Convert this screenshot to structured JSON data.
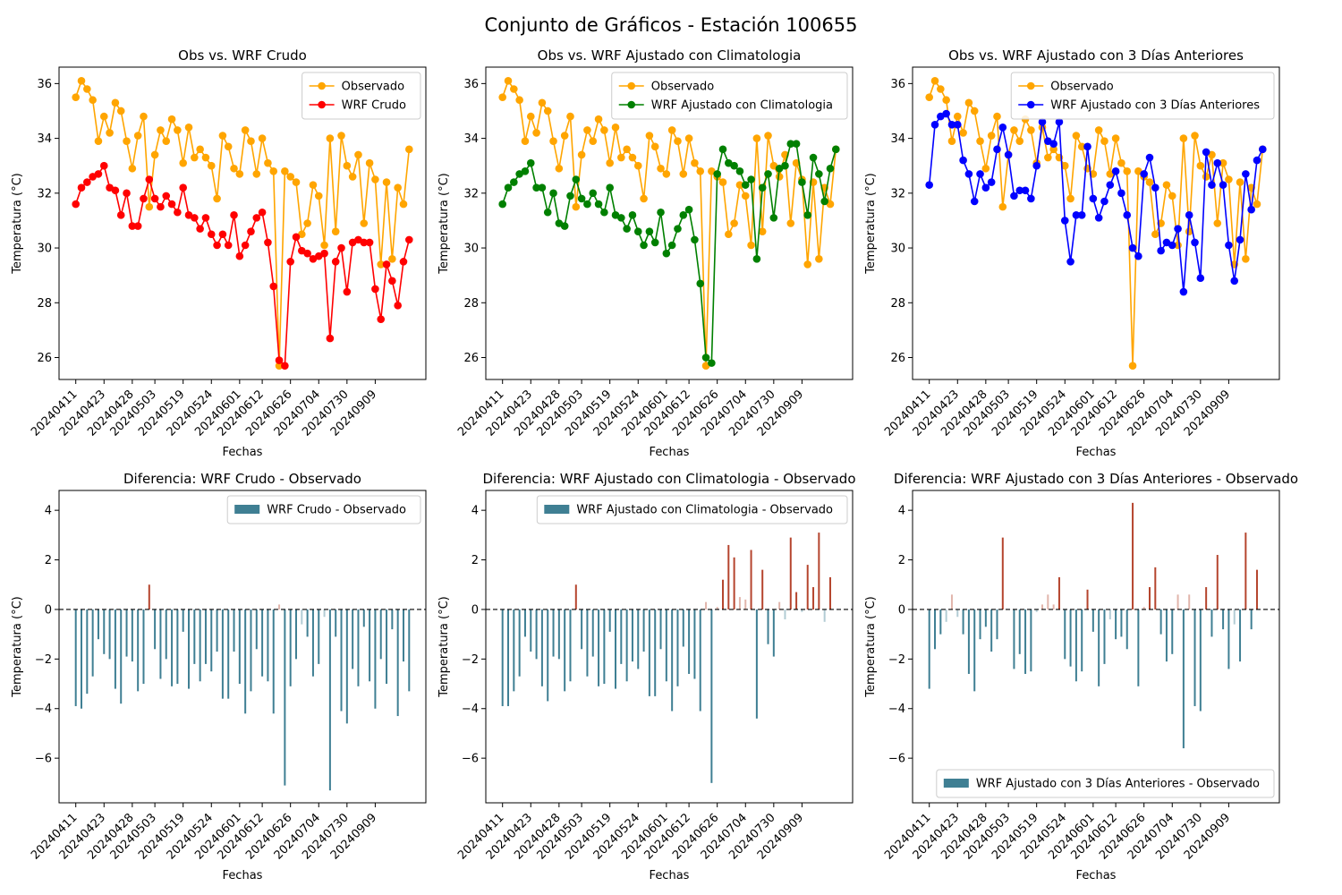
{
  "figure": {
    "title": "Conjunto de Gráficos - Estación 100655"
  },
  "colors": {
    "observed": "#ffa500",
    "raw": "#ff0000",
    "clim": "#008000",
    "prev3": "#0000ff",
    "bar_neg": "#3f7f93",
    "bar_pos": "#b5452e"
  },
  "chart_data": [
    {
      "type": "line",
      "title": "Obs vs. WRF Crudo",
      "xlabel": "Fechas",
      "ylabel": "Temperatura (°C)",
      "ylim": [
        25.2,
        36.6
      ],
      "yticks": [
        26,
        28,
        30,
        32,
        34,
        36
      ],
      "xticklabels": [
        "20240411",
        "20240423",
        "20240428",
        "20240503",
        "20240519",
        "20240524",
        "20240601",
        "20240612",
        "20240626",
        "20240704",
        "20240730",
        "20240909"
      ],
      "legend_position": "top-right",
      "series": [
        {
          "name": "Observado",
          "color": "#ffa500",
          "values": [
            35.5,
            36.1,
            35.8,
            35.4,
            33.9,
            34.8,
            34.2,
            35.3,
            35.0,
            33.9,
            32.9,
            34.1,
            34.8,
            31.5,
            33.4,
            34.3,
            33.9,
            34.7,
            34.3,
            33.1,
            34.4,
            33.3,
            33.6,
            33.3,
            33.0,
            31.8,
            34.1,
            33.7,
            32.9,
            32.7,
            34.3,
            33.9,
            32.7,
            34.0,
            33.1,
            32.8,
            25.7,
            32.8,
            32.6,
            32.4,
            30.5,
            30.9,
            32.3,
            31.9,
            30.1,
            34.0,
            30.6,
            34.1,
            33.0,
            32.6,
            33.4,
            30.9,
            33.1,
            32.5,
            29.4,
            32.4,
            29.6,
            32.2,
            31.6,
            33.6
          ]
        },
        {
          "name": "WRF Crudo",
          "color": "#ff0000",
          "values": [
            31.6,
            32.2,
            32.4,
            32.6,
            32.7,
            33.0,
            32.2,
            32.1,
            31.2,
            32.0,
            30.8,
            30.8,
            31.8,
            32.5,
            31.8,
            31.5,
            31.9,
            31.6,
            31.3,
            32.2,
            31.2,
            31.1,
            30.7,
            31.1,
            30.5,
            30.1,
            30.5,
            30.1,
            31.2,
            29.7,
            30.1,
            30.6,
            31.1,
            31.3,
            30.2,
            28.6,
            25.9,
            25.7,
            29.5,
            30.4,
            29.9,
            29.8,
            29.6,
            29.7,
            29.8,
            26.7,
            29.5,
            30.0,
            28.4,
            30.2,
            30.3,
            30.2,
            30.2,
            28.5,
            27.4,
            29.4,
            28.8,
            27.9,
            29.5,
            30.3
          ]
        }
      ]
    },
    {
      "type": "line",
      "title": "Obs vs. WRF Ajustado con Climatologia",
      "xlabel": "Fechas",
      "ylabel": "Temperatura (°C)",
      "ylim": [
        25.2,
        36.6
      ],
      "yticks": [
        26,
        28,
        30,
        32,
        34,
        36
      ],
      "xticklabels": [
        "20240411",
        "20240423",
        "20240428",
        "20240503",
        "20240519",
        "20240524",
        "20240601",
        "20240612",
        "20240626",
        "20240704",
        "20240730",
        "20240909"
      ],
      "legend_position": "top-right",
      "series": [
        {
          "name": "Observado",
          "color": "#ffa500",
          "values": [
            35.5,
            36.1,
            35.8,
            35.4,
            33.9,
            34.8,
            34.2,
            35.3,
            35.0,
            33.9,
            32.9,
            34.1,
            34.8,
            31.5,
            33.4,
            34.3,
            33.9,
            34.7,
            34.3,
            33.1,
            34.4,
            33.3,
            33.6,
            33.3,
            33.0,
            31.8,
            34.1,
            33.7,
            32.9,
            32.7,
            34.3,
            33.9,
            32.7,
            34.0,
            33.1,
            32.8,
            25.7,
            32.8,
            32.6,
            32.4,
            30.5,
            30.9,
            32.3,
            31.9,
            30.1,
            34.0,
            30.6,
            34.1,
            33.0,
            32.6,
            33.4,
            30.9,
            33.1,
            32.5,
            29.4,
            32.4,
            29.6,
            32.2,
            31.6,
            33.6
          ]
        },
        {
          "name": "WRF Ajustado con Climatologia",
          "color": "#008000",
          "values": [
            31.6,
            32.2,
            32.4,
            32.7,
            32.8,
            33.1,
            32.2,
            32.2,
            31.3,
            32.0,
            30.9,
            30.8,
            31.9,
            32.5,
            31.8,
            31.6,
            32.0,
            31.6,
            31.3,
            32.2,
            31.2,
            31.1,
            30.7,
            31.2,
            30.6,
            30.1,
            30.6,
            30.2,
            31.3,
            29.8,
            30.1,
            30.7,
            31.2,
            31.4,
            30.3,
            28.7,
            26.0,
            25.8,
            32.7,
            33.6,
            33.1,
            33.0,
            32.8,
            32.3,
            32.5,
            29.6,
            32.2,
            32.7,
            31.1,
            32.9,
            33.0,
            33.8,
            33.8,
            32.4,
            31.2,
            33.3,
            32.7,
            31.7,
            32.9,
            33.6
          ]
        }
      ]
    },
    {
      "type": "line",
      "title": "Obs vs. WRF Ajustado con 3 Días Anteriores",
      "xlabel": "Fechas",
      "ylabel": "Temperatura (°C)",
      "ylim": [
        25.2,
        36.6
      ],
      "yticks": [
        26,
        28,
        30,
        32,
        34,
        36
      ],
      "xticklabels": [
        "20240411",
        "20240423",
        "20240428",
        "20240503",
        "20240519",
        "20240524",
        "20240601",
        "20240612",
        "20240626",
        "20240704",
        "20240730",
        "20240909"
      ],
      "legend_position": "top-right",
      "series": [
        {
          "name": "Observado",
          "color": "#ffa500",
          "values": [
            35.5,
            36.1,
            35.8,
            35.4,
            33.9,
            34.8,
            34.2,
            35.3,
            35.0,
            33.9,
            32.9,
            34.1,
            34.8,
            31.5,
            33.4,
            34.3,
            33.9,
            34.7,
            34.3,
            33.1,
            34.4,
            33.3,
            33.6,
            33.3,
            33.0,
            31.8,
            34.1,
            33.7,
            32.9,
            32.7,
            34.3,
            33.9,
            32.7,
            34.0,
            33.1,
            32.8,
            25.7,
            32.8,
            32.6,
            32.4,
            30.5,
            30.9,
            32.3,
            31.9,
            30.1,
            34.0,
            30.6,
            34.1,
            33.0,
            32.6,
            33.4,
            30.9,
            33.1,
            32.5,
            29.4,
            32.4,
            29.6,
            32.2,
            31.6,
            33.6
          ]
        },
        {
          "name": "WRF Ajustado con 3 Días Anteriores",
          "color": "#0000ff",
          "values": [
            32.3,
            34.5,
            34.8,
            34.9,
            34.5,
            34.5,
            33.2,
            32.7,
            31.7,
            32.7,
            32.2,
            32.4,
            33.6,
            34.4,
            33.4,
            31.9,
            32.1,
            32.1,
            31.8,
            33.0,
            34.6,
            33.9,
            33.8,
            34.6,
            31.0,
            29.5,
            31.2,
            31.2,
            33.7,
            31.8,
            31.1,
            31.7,
            32.3,
            32.8,
            32.0,
            31.2,
            30.0,
            29.7,
            32.7,
            33.3,
            32.2,
            29.9,
            30.2,
            30.1,
            30.7,
            28.4,
            31.2,
            30.2,
            28.9,
            33.5,
            32.3,
            33.1,
            32.3,
            30.1,
            28.8,
            30.3,
            32.7,
            31.4,
            33.2,
            33.6
          ]
        }
      ]
    },
    {
      "type": "bar",
      "title": "Diferencia: WRF Crudo - Observado",
      "xlabel": "Fechas",
      "ylabel": "Temperatura (°C)",
      "ylim": [
        -7.8,
        4.8
      ],
      "yticks": [
        -6,
        -4,
        -2,
        0,
        2,
        4
      ],
      "xticklabels": [
        "20240411",
        "20240423",
        "20240428",
        "20240503",
        "20240519",
        "20240524",
        "20240601",
        "20240612",
        "20240626",
        "20240704",
        "20240730",
        "20240909"
      ],
      "legend_position": "top-right",
      "series": [
        {
          "name": "WRF Crudo - Observado",
          "color": "#3f7f93",
          "values": [
            -3.9,
            -4.0,
            -3.4,
            -2.7,
            -1.2,
            -1.8,
            -2.0,
            -3.2,
            -3.8,
            -1.9,
            -2.1,
            -3.3,
            -3.0,
            1.0,
            -1.6,
            -2.8,
            -2.0,
            -3.1,
            -3.0,
            -0.9,
            -3.2,
            -2.2,
            -2.9,
            -2.2,
            -2.5,
            -1.7,
            -3.6,
            -3.6,
            -1.7,
            -3.0,
            -4.2,
            -3.3,
            -1.6,
            -2.7,
            -2.9,
            -4.2,
            0.2,
            -7.1,
            -3.1,
            -2.0,
            -0.6,
            -1.1,
            -2.7,
            -2.2,
            -0.3,
            -7.3,
            -1.1,
            -4.1,
            -4.6,
            -2.4,
            -3.1,
            -0.7,
            -2.9,
            -4.0,
            -2.0,
            -3.0,
            -0.8,
            -4.3,
            -2.1,
            -3.3
          ]
        }
      ]
    },
    {
      "type": "bar",
      "title": "Diferencia: WRF Ajustado con Climatologia - Observado",
      "xlabel": "Fechas",
      "ylabel": "Temperatura (°C)",
      "ylim": [
        -7.8,
        4.8
      ],
      "yticks": [
        -6,
        -4,
        -2,
        0,
        2,
        4
      ],
      "xticklabels": [
        "20240411",
        "20240423",
        "20240428",
        "20240503",
        "20240519",
        "20240524",
        "20240601",
        "20240612",
        "20240626",
        "20240704",
        "20240730",
        "20240909"
      ],
      "legend_position": "top-right",
      "series": [
        {
          "name": "WRF Ajustado con Climatologia - Observado",
          "color": "#3f7f93",
          "values": [
            -3.9,
            -3.9,
            -3.3,
            -2.7,
            -1.1,
            -1.7,
            -2.0,
            -3.1,
            -3.7,
            -1.9,
            -2.0,
            -3.3,
            -2.9,
            1.0,
            -1.6,
            -2.7,
            -1.9,
            -3.1,
            -3.0,
            -0.9,
            -3.2,
            -2.2,
            -2.9,
            -2.1,
            -2.4,
            -1.7,
            -3.5,
            -3.5,
            -1.6,
            -2.9,
            -4.1,
            -3.1,
            -1.5,
            -2.6,
            -2.8,
            -4.1,
            0.3,
            -7.0,
            0.1,
            1.2,
            2.6,
            2.1,
            0.5,
            0.4,
            2.4,
            -4.4,
            1.6,
            -1.4,
            -1.9,
            0.3,
            -0.4,
            2.9,
            0.7,
            -0.1,
            1.8,
            0.9,
            3.1,
            -0.5,
            1.3,
            0.0
          ]
        }
      ]
    },
    {
      "type": "bar",
      "title": "Diferencia: WRF Ajustado con 3 Días Anteriores - Observado",
      "xlabel": "Fechas",
      "ylabel": "Temperatura (°C)",
      "ylim": [
        -7.8,
        4.8
      ],
      "yticks": [
        -6,
        -4,
        -2,
        0,
        2,
        4
      ],
      "xticklabels": [
        "20240411",
        "20240423",
        "20240428",
        "20240503",
        "20240519",
        "20240524",
        "20240601",
        "20240612",
        "20240626",
        "20240704",
        "20240730",
        "20240909"
      ],
      "legend_position": "bottom-right",
      "series": [
        {
          "name": "WRF Ajustado con 3 Días Anteriores - Observado",
          "color": "#3f7f93",
          "values": [
            -3.2,
            -1.6,
            -1.0,
            -0.5,
            0.6,
            -0.3,
            -1.0,
            -2.6,
            -3.3,
            -1.2,
            -0.7,
            -1.7,
            -1.2,
            2.9,
            0.0,
            -2.4,
            -1.8,
            -2.6,
            -2.5,
            -0.1,
            0.2,
            0.6,
            0.2,
            1.3,
            -2.0,
            -2.3,
            -2.9,
            -2.5,
            0.8,
            -0.9,
            -3.1,
            -2.2,
            -0.4,
            -1.2,
            -1.1,
            -1.6,
            4.3,
            -3.1,
            0.1,
            0.9,
            1.7,
            -1.0,
            -2.1,
            -1.8,
            0.6,
            -5.6,
            0.6,
            -3.9,
            -4.1,
            0.9,
            -1.1,
            2.2,
            -0.8,
            -2.4,
            -0.6,
            -2.1,
            3.1,
            -0.8,
            1.6,
            0.0
          ]
        }
      ]
    }
  ]
}
